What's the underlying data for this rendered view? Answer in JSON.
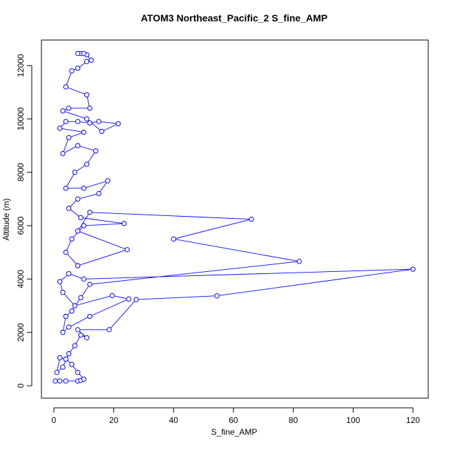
{
  "chart_data": {
    "type": "line",
    "title": "ATOM3 Northeast_Pacific_2 S_fine_AMP",
    "x_label": "S_fine_AMP",
    "y_label": "Altitude (m)",
    "color": "#0000ff",
    "x": [
      0.5,
      2,
      4,
      8,
      9,
      10,
      8,
      6,
      4,
      2,
      1,
      3,
      5,
      7,
      9,
      11,
      8,
      18.5,
      27.5,
      54.5,
      120,
      10,
      5,
      2,
      3,
      7,
      19.5,
      25,
      12,
      5,
      3,
      4,
      6,
      9,
      12,
      82,
      40,
      66,
      12,
      8,
      24.5,
      8,
      4,
      6,
      10,
      23.5,
      9,
      5,
      8,
      15,
      18,
      10,
      4,
      7,
      11,
      14,
      8,
      3,
      5,
      10,
      2,
      4,
      8,
      12,
      15,
      21.5,
      16,
      11,
      3,
      5,
      12,
      11,
      4,
      6,
      8,
      11,
      12.5,
      11,
      9,
      8,
      10
    ],
    "values": [
      180,
      180,
      180,
      180,
      200,
      250,
      500,
      800,
      1000,
      1050,
      500,
      700,
      1200,
      1500,
      1900,
      1800,
      2100,
      2100,
      3230,
      3370,
      4370,
      4000,
      4200,
      3900,
      3500,
      3000,
      3380,
      3250,
      2600,
      2200,
      2000,
      2600,
      2800,
      3300,
      3800,
      4660,
      5500,
      6240,
      6500,
      5800,
      5100,
      4500,
      5000,
      5500,
      6000,
      6080,
      6300,
      6650,
      7000,
      7200,
      7680,
      7400,
      7400,
      8000,
      8300,
      8800,
      9000,
      8700,
      9300,
      9500,
      9650,
      9900,
      9900,
      9850,
      9900,
      9820,
      9530,
      10000,
      10300,
      10400,
      10400,
      10900,
      11200,
      11800,
      11900,
      12150,
      12200,
      12400,
      12450,
      12450,
      12450
    ],
    "xlim": [
      -4.15,
      125.1
    ],
    "ylim": [
      -465,
      12956
    ],
    "xticks": [
      0,
      20,
      40,
      60,
      80,
      100,
      120
    ],
    "yticks": [
      0,
      2000,
      4000,
      6000,
      8000,
      10000,
      12000
    ]
  }
}
